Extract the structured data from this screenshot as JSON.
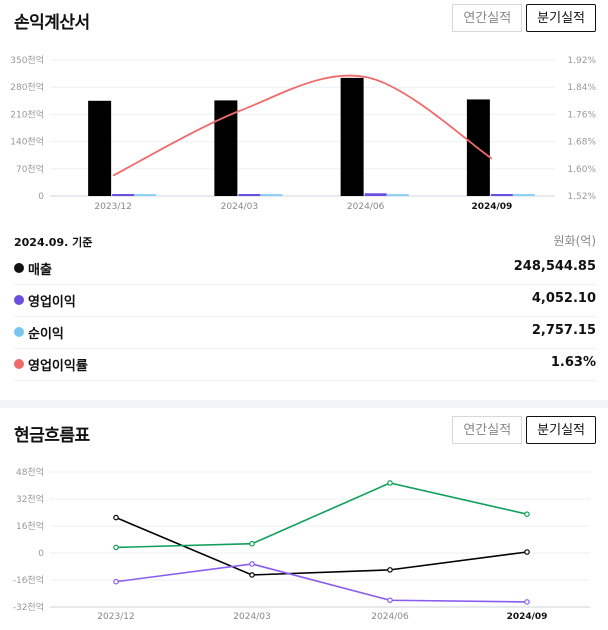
{
  "income": {
    "title": "손익계산서",
    "tabs": [
      "연간실적",
      "분기실적"
    ],
    "active_tab": 1,
    "legend_head": "2024.09. 기준",
    "legend_unit": "원화(억)",
    "legend": [
      {
        "name": "매출",
        "value": "248,544.85",
        "color": "#111111"
      },
      {
        "name": "영업이익",
        "value": "4,052.10",
        "color": "#6a4fe0"
      },
      {
        "name": "순이익",
        "value": "2,757.15",
        "color": "#7cc4f0"
      },
      {
        "name": "영업이익률",
        "value": "1.63%",
        "color": "#f06a6a"
      }
    ]
  },
  "cash": {
    "title": "현금흐름표",
    "tabs": [
      "연간실적",
      "분기실적"
    ],
    "active_tab": 1
  },
  "chart_data": [
    {
      "type": "bar",
      "categories": [
        "2023/12",
        "2024/03",
        "2024/06",
        "2024/09"
      ],
      "highlight_category": "2024/09",
      "left_axis_ticks": [
        "0",
        "70천억",
        "140천억",
        "210천억",
        "280천억",
        "350천억"
      ],
      "left_ylim": [
        0,
        350000
      ],
      "right_axis_ticks": [
        "1.52%",
        "1.60%",
        "1.68%",
        "1.76%",
        "1.84%",
        "1.92%"
      ],
      "right_ylim": [
        1.52,
        1.92
      ],
      "series": [
        {
          "name": "매출",
          "values": [
            245000,
            246000,
            304000,
            248544.85
          ],
          "color": "#000000",
          "axis": "left"
        },
        {
          "name": "영업이익",
          "values": [
            4000,
            5000,
            7000,
            4052.1
          ],
          "color": "#6a4fe0",
          "axis": "left"
        },
        {
          "name": "순이익",
          "values": [
            3000,
            4000,
            5000,
            2757.15
          ],
          "color": "#8fd0f5",
          "axis": "left"
        },
        {
          "name": "영업이익률",
          "values": [
            1.58,
            1.77,
            1.87,
            1.63
          ],
          "color": "#f06a6a",
          "axis": "right",
          "kind": "line"
        }
      ],
      "grid": true
    },
    {
      "type": "line",
      "categories": [
        "2023/12",
        "2024/03",
        "2024/06",
        "2024/09"
      ],
      "highlight_category": "2024/09",
      "y_ticks": [
        "48천억",
        "32천억",
        "16천억",
        "0",
        "-16천억",
        "-32천억"
      ],
      "ylim": [
        -32000,
        48000
      ],
      "series": [
        {
          "values": [
            21000,
            -13000,
            -10000,
            600
          ],
          "color": "#000000"
        },
        {
          "values": [
            3300,
            5500,
            41500,
            23000
          ],
          "color": "#10a05a"
        },
        {
          "values": [
            -17000,
            -6500,
            -28000,
            -29000
          ],
          "color": "#8a5cf0"
        }
      ],
      "grid": true
    }
  ]
}
